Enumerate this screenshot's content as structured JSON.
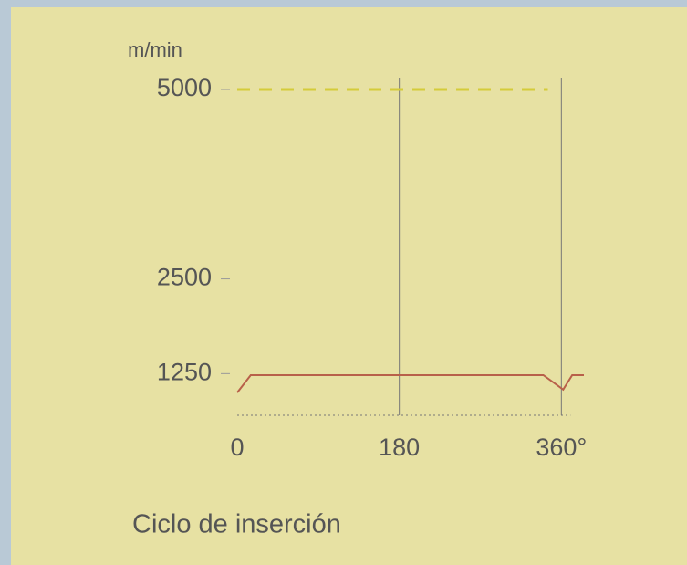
{
  "chart_data": {
    "type": "line",
    "y_unit": "m/min",
    "x_label": "Ciclo de inserción",
    "xlim": [
      0,
      385
    ],
    "xticks": [
      0,
      180,
      {
        "value": 360,
        "label": "360°"
      }
    ],
    "ylim": [
      700,
      5000
    ],
    "yticks": [
      1250,
      2500,
      5000
    ],
    "grid_x": true,
    "series": [
      {
        "color": "#d4cc3a",
        "dashed": true,
        "x": [
          0,
          345
        ],
        "values": [
          5000,
          5000
        ]
      },
      {
        "color": "#b8604a",
        "dashed": false,
        "x": [
          0,
          15,
          340,
          362,
          372,
          385
        ],
        "values": [
          1000,
          1230,
          1230,
          1040,
          1230,
          1230
        ]
      }
    ]
  }
}
